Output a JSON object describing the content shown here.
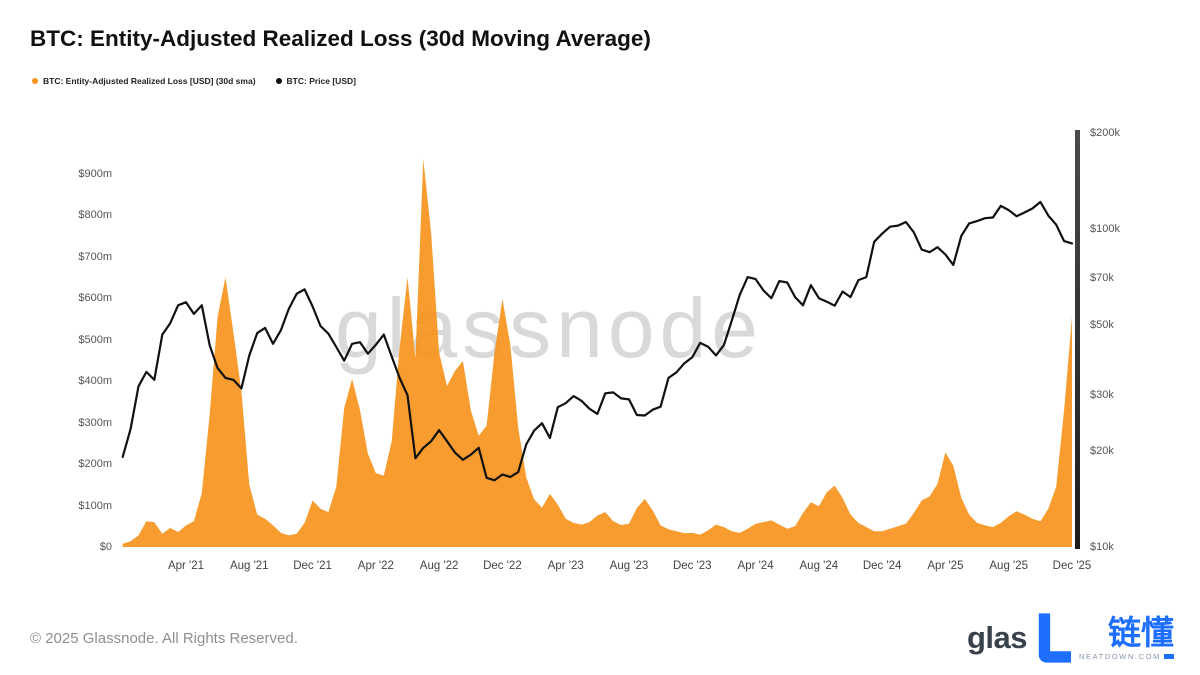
{
  "page": {
    "title": "BTC: Entity-Adjusted Realized Loss (30d Moving Average)",
    "watermark": "glassnode",
    "footer": {
      "copyright": "© 2025 Glassnode. All Rights Reserved.",
      "logo_left_text": "glas",
      "logo_cn": "链懂",
      "logo_sub": "NEATDOWN.COM"
    }
  },
  "legend": [
    {
      "label": "BTC: Entity-Adjusted Realized Loss [USD] (30d sma)",
      "color": "#F7941D"
    },
    {
      "label": "BTC: Price [USD]",
      "color": "#111111"
    }
  ],
  "colors": {
    "loss_area": "#F7941D",
    "price_line": "#111111",
    "axis_text": "#555555",
    "brand_blue": "#1E6FFF",
    "watermark_gray": "#d9d9d9"
  },
  "chart_data": {
    "type": "area+line",
    "title": "BTC: Entity-Adjusted Realized Loss (30d Moving Average)",
    "x_axis": {
      "start": "2020-12",
      "end": "2025-12",
      "step_months": 0.5,
      "ticks": [
        {
          "label": "Apr '21",
          "t": 4
        },
        {
          "label": "Aug '21",
          "t": 8
        },
        {
          "label": "Dec '21",
          "t": 12
        },
        {
          "label": "Apr '22",
          "t": 16
        },
        {
          "label": "Aug '22",
          "t": 20
        },
        {
          "label": "Dec '22",
          "t": 24
        },
        {
          "label": "Apr '23",
          "t": 28
        },
        {
          "label": "Aug '23",
          "t": 32
        },
        {
          "label": "Dec '23",
          "t": 36
        },
        {
          "label": "Apr '24",
          "t": 40
        },
        {
          "label": "Aug '24",
          "t": 44
        },
        {
          "label": "Dec '24",
          "t": 48
        },
        {
          "label": "Apr '25",
          "t": 52
        },
        {
          "label": "Aug '25",
          "t": 56
        },
        {
          "label": "Dec '25",
          "t": 60
        }
      ]
    },
    "left_axis": {
      "unit": "USD millions",
      "scale": "linear",
      "ylim": [
        0,
        1005
      ],
      "ticks": [
        {
          "label": "$0",
          "value": 0
        },
        {
          "label": "$100m",
          "value": 100
        },
        {
          "label": "$200m",
          "value": 200
        },
        {
          "label": "$300m",
          "value": 300
        },
        {
          "label": "$400m",
          "value": 400
        },
        {
          "label": "$500m",
          "value": 500
        },
        {
          "label": "$600m",
          "value": 600
        },
        {
          "label": "$700m",
          "value": 700
        },
        {
          "label": "$800m",
          "value": 800
        },
        {
          "label": "$900m",
          "value": 900
        }
      ]
    },
    "right_axis": {
      "unit": "USD thousands",
      "scale": "log",
      "ylim": [
        10,
        200
      ],
      "ticks": [
        {
          "label": "$10k",
          "value": 10
        },
        {
          "label": "$20k",
          "value": 20
        },
        {
          "label": "$30k",
          "value": 30
        },
        {
          "label": "$50k",
          "value": 50
        },
        {
          "label": "$70k",
          "value": 70
        },
        {
          "label": "$100k",
          "value": 100
        },
        {
          "label": "$200k",
          "value": 200
        }
      ]
    },
    "series": [
      {
        "name": "BTC: Entity-Adjusted Realized Loss [USD] (30d sma)",
        "type": "area",
        "axis": "left",
        "color": "#F7941D",
        "values_usd_millions": [
          8,
          14,
          28,
          62,
          60,
          32,
          46,
          36,
          52,
          62,
          130,
          320,
          555,
          650,
          515,
          375,
          150,
          78,
          68,
          52,
          34,
          28,
          32,
          58,
          112,
          92,
          84,
          145,
          335,
          405,
          330,
          225,
          178,
          172,
          255,
          480,
          650,
          455,
          935,
          755,
          468,
          388,
          425,
          448,
          330,
          268,
          292,
          468,
          598,
          488,
          288,
          168,
          115,
          95,
          128,
          102,
          68,
          58,
          54,
          60,
          76,
          84,
          62,
          53,
          56,
          94,
          116,
          88,
          52,
          43,
          38,
          33,
          34,
          30,
          40,
          54,
          48,
          38,
          34,
          44,
          56,
          60,
          64,
          54,
          44,
          50,
          82,
          108,
          98,
          132,
          148,
          118,
          78,
          58,
          48,
          38,
          38,
          44,
          50,
          56,
          82,
          112,
          122,
          152,
          228,
          196,
          118,
          78,
          58,
          52,
          48,
          58,
          74,
          86,
          78,
          68,
          62,
          92,
          145,
          330,
          555
        ]
      },
      {
        "name": "BTC: Price [USD]",
        "type": "line",
        "axis": "right",
        "color": "#111111",
        "values_usd_thousands": [
          19.2,
          23.5,
          32.0,
          35.5,
          33.5,
          46.5,
          50.5,
          57.5,
          58.8,
          54.0,
          57.5,
          43.0,
          36.5,
          34.0,
          33.5,
          31.5,
          40.0,
          47.0,
          48.8,
          43.5,
          48.0,
          56.0,
          62.5,
          64.5,
          57.0,
          49.5,
          46.8,
          42.5,
          38.5,
          43.5,
          44.0,
          40.5,
          43.2,
          46.5,
          39.7,
          34.0,
          30.0,
          19.0,
          20.5,
          21.5,
          23.3,
          21.5,
          19.8,
          18.8,
          19.5,
          20.5,
          16.5,
          16.2,
          16.9,
          16.6,
          17.2,
          21.0,
          23.2,
          24.5,
          22.0,
          27.5,
          28.3,
          29.8,
          28.8,
          27.2,
          26.2,
          30.4,
          30.6,
          29.3,
          29.1,
          26.0,
          25.9,
          27.0,
          27.6,
          34.0,
          35.4,
          37.8,
          39.5,
          43.8,
          42.6,
          40.0,
          43.1,
          51.5,
          62.0,
          70.5,
          69.5,
          64.0,
          60.5,
          68.5,
          67.8,
          61.0,
          57.5,
          66.5,
          60.5,
          59.0,
          57.3,
          63.5,
          61.0,
          69.0,
          70.5,
          91.0,
          96.5,
          101.5,
          102.3,
          105.0,
          97.5,
          86.0,
          84.4,
          87.5,
          83.0,
          77.0,
          95.0,
          104.0,
          105.7,
          108.0,
          108.5,
          118.0,
          114.5,
          109.5,
          112.5,
          115.8,
          121.5,
          110.0,
          103.0,
          91.5,
          90.0
        ]
      }
    ]
  }
}
